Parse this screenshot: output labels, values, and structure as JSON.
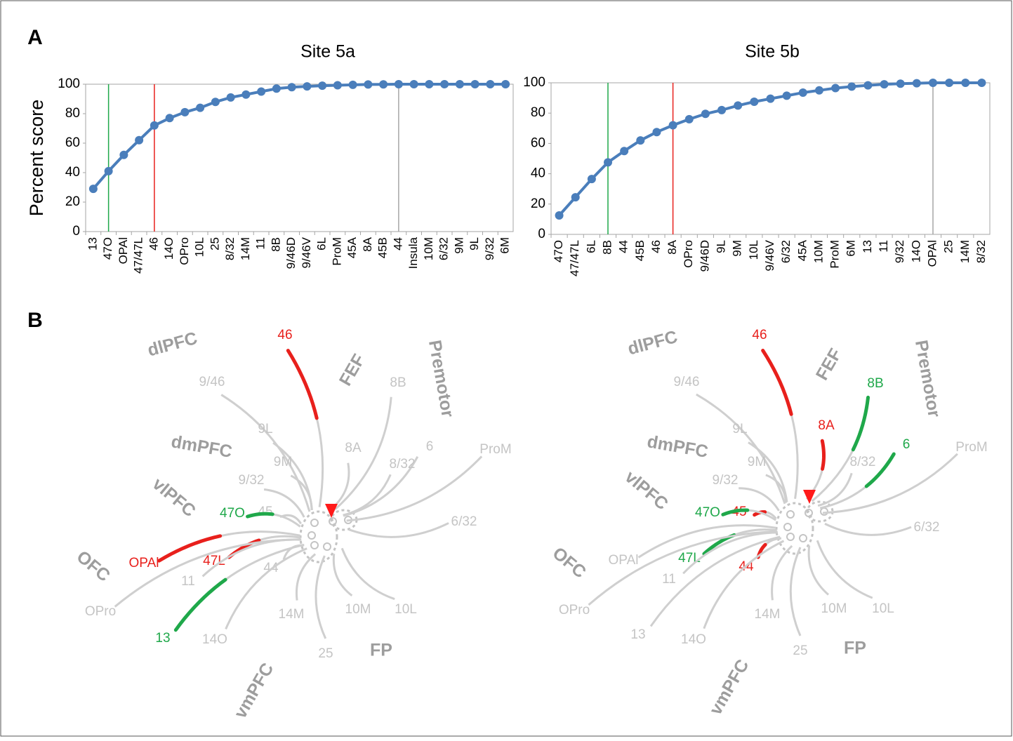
{
  "panels": [
    "A",
    "B"
  ],
  "chart_data": [
    {
      "type": "line",
      "title": "Site 5a",
      "y_label": "Percent score",
      "categories": [
        "13",
        "47O",
        "OPAl",
        "47/47L",
        "46",
        "14O",
        "OPro",
        "10L",
        "25",
        "8/32",
        "14M",
        "11",
        "8B",
        "9/46D",
        "9/46V",
        "6L",
        "ProM",
        "45A",
        "8A",
        "45B",
        "44",
        "Insula",
        "10M",
        "6/32",
        "9M",
        "9L",
        "9/32",
        "6M"
      ],
      "series": [
        {
          "color": "#4a7ebb",
          "values": [
            29,
            41,
            52,
            62,
            72,
            77,
            81,
            84,
            88,
            91,
            93,
            95,
            97,
            98,
            98.5,
            99,
            99.3,
            99.6,
            99.8,
            99.9,
            100,
            100,
            100,
            100,
            100,
            100,
            100,
            100
          ]
        }
      ],
      "reference_lines": [
        {
          "at": 1,
          "color": "#1fa84a"
        },
        {
          "at": 4,
          "color": "#e8201c"
        },
        {
          "at": 20,
          "color": "#a6a6a6"
        }
      ],
      "ylim": [
        0,
        100
      ],
      "yticks": [
        0,
        20,
        40,
        60,
        80,
        100
      ],
      "grid": false
    },
    {
      "type": "line",
      "title": "Site 5b",
      "categories": [
        "47O",
        "47/47L",
        "6L",
        "8B",
        "44",
        "45B",
        "46",
        "8A",
        "OPro",
        "9/46D",
        "9L",
        "9M",
        "10L",
        "9/46V",
        "6/32",
        "45A",
        "10M",
        "ProM",
        "6M",
        "13",
        "11",
        "9/32",
        "14O",
        "OPAl",
        "25",
        "14M",
        "8/32"
      ],
      "series": [
        {
          "color": "#4a7ebb",
          "values": [
            12.5,
            24.5,
            36.5,
            47.5,
            55,
            62,
            67.5,
            72,
            76,
            79.5,
            82,
            85,
            87.5,
            89.5,
            91.5,
            93.5,
            95,
            96.5,
            97.5,
            98.3,
            99,
            99.4,
            99.7,
            100,
            100,
            100,
            100
          ]
        }
      ],
      "reference_lines": [
        {
          "at": 3,
          "color": "#1fa84a"
        },
        {
          "at": 7,
          "color": "#e8201c"
        },
        {
          "at": 23,
          "color": "#a6a6a6"
        }
      ],
      "ylim": [
        0,
        100
      ],
      "yticks": [
        0,
        20,
        40,
        60,
        80,
        100
      ],
      "grid": false
    }
  ],
  "diagrams": [
    {
      "label_color": "#c4c4c4",
      "region_color": "#9d9d9d",
      "regions": [
        "dlPFC",
        "FEF",
        "Premotor",
        "dmPFC",
        "vlPFC",
        "OFC",
        "vmPFC",
        "FP"
      ],
      "areas": [
        {
          "label": "46",
          "color": "#e8201c"
        },
        {
          "label": "9/46"
        },
        {
          "label": "9L"
        },
        {
          "label": "8A"
        },
        {
          "label": "8B"
        },
        {
          "label": "9M"
        },
        {
          "label": "6"
        },
        {
          "label": "ProM"
        },
        {
          "label": "8/32"
        },
        {
          "label": "9/32"
        },
        {
          "label": "45"
        },
        {
          "label": "47O",
          "color": "#1fa84a"
        },
        {
          "label": "6/32"
        },
        {
          "label": "47L",
          "color": "#e8201c"
        },
        {
          "label": "OPAl",
          "color": "#e8201c"
        },
        {
          "label": "44"
        },
        {
          "label": "11"
        },
        {
          "label": "OPro"
        },
        {
          "label": "10M"
        },
        {
          "label": "10L"
        },
        {
          "label": "14M"
        },
        {
          "label": "13",
          "color": "#1fa84a"
        },
        {
          "label": "14O"
        },
        {
          "label": "25"
        }
      ]
    },
    {
      "label_color": "#c4c4c4",
      "region_color": "#9d9d9d",
      "regions": [
        "dlPFC",
        "FEF",
        "Premotor",
        "dmPFC",
        "vlPFC",
        "OFC",
        "vmPFC",
        "FP"
      ],
      "areas": [
        {
          "label": "46",
          "color": "#e8201c"
        },
        {
          "label": "9/46"
        },
        {
          "label": "9L"
        },
        {
          "label": "8A",
          "color": "#e8201c"
        },
        {
          "label": "8B",
          "color": "#1fa84a"
        },
        {
          "label": "9M"
        },
        {
          "label": "6",
          "color": "#1fa84a"
        },
        {
          "label": "ProM"
        },
        {
          "label": "8/32"
        },
        {
          "label": "9/32"
        },
        {
          "label": "45",
          "color": "#e8201c"
        },
        {
          "label": "47O",
          "color": "#1fa84a"
        },
        {
          "label": "6/32"
        },
        {
          "label": "47L",
          "color": "#1fa84a"
        },
        {
          "label": "44",
          "color": "#e8201c"
        },
        {
          "label": "OPAl"
        },
        {
          "label": "11"
        },
        {
          "label": "OPro"
        },
        {
          "label": "10M"
        },
        {
          "label": "10L"
        },
        {
          "label": "14M"
        },
        {
          "label": "13"
        },
        {
          "label": "14O"
        },
        {
          "label": "25"
        }
      ]
    }
  ]
}
